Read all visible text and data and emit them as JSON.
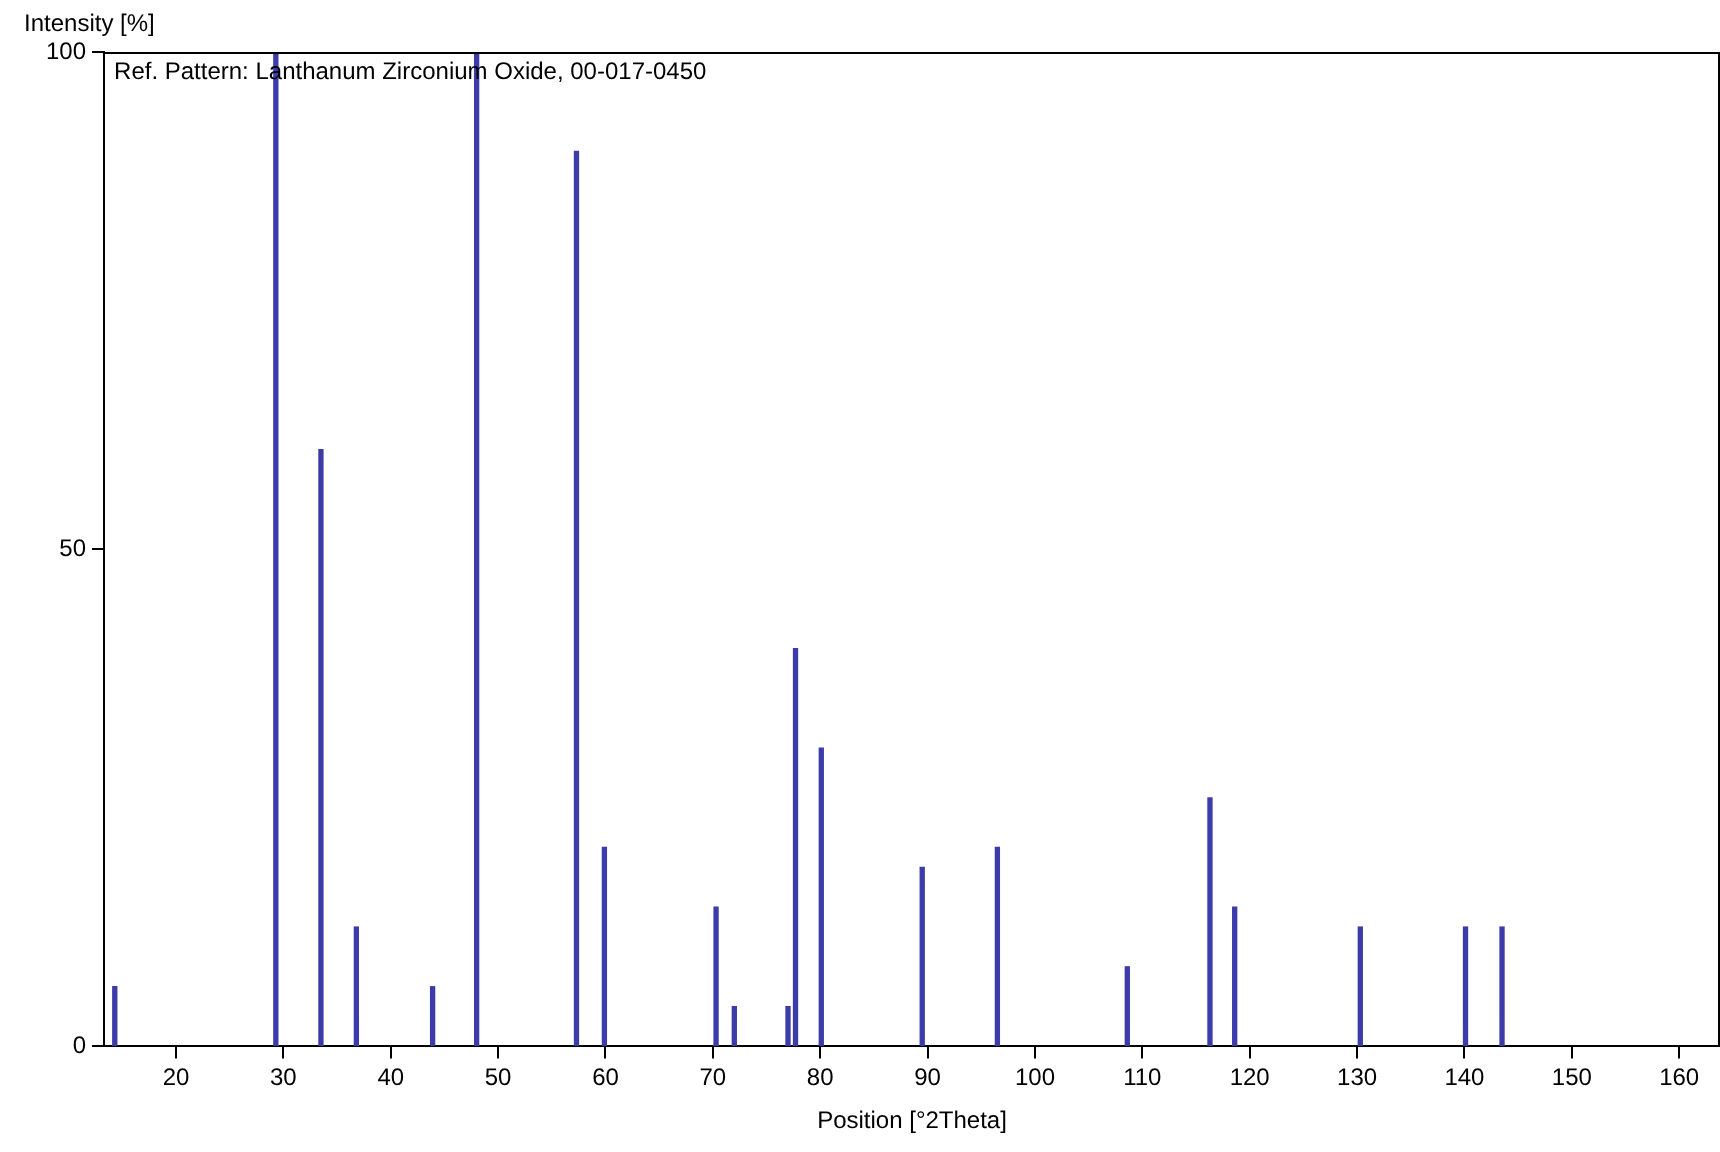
{
  "chart_data": {
    "type": "bar",
    "xlabel": "Position [°2Theta]",
    "ylabel": "Intensity [%]",
    "annotations": [
      "Ref. Pattern: Lanthanum Zirconium Oxide, 00-017-0450"
    ],
    "x": [
      14.3,
      29.3,
      33.5,
      36.8,
      43.9,
      48.0,
      57.3,
      59.9,
      70.3,
      72.0,
      77.0,
      77.7,
      80.1,
      89.5,
      96.5,
      108.6,
      116.3,
      118.6,
      130.3,
      140.1,
      143.5
    ],
    "values": [
      6,
      100,
      60,
      12,
      6,
      100,
      90,
      20,
      14,
      4,
      4,
      40,
      30,
      18,
      20,
      8,
      25,
      14,
      12,
      12,
      12
    ],
    "color": "#3c3ca8",
    "xlim": [
      13.3,
      163.8
    ],
    "xticks": [
      20,
      30,
      40,
      50,
      60,
      70,
      80,
      90,
      100,
      110,
      120,
      130,
      140,
      150,
      160
    ],
    "ylim": [
      0,
      100
    ],
    "yticks": [
      0,
      50,
      100
    ],
    "grid": false,
    "legend": false
  }
}
